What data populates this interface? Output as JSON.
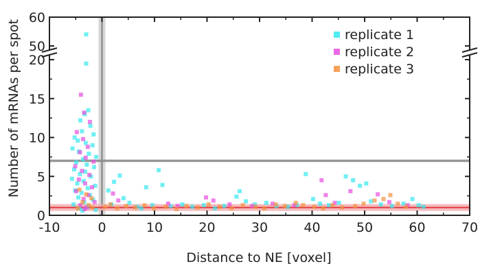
{
  "chart_data": {
    "type": "scatter",
    "xlabel": "Distance to NE [voxel]",
    "ylabel": "Number of mRNAs per spot",
    "xlim": [
      -10,
      70
    ],
    "x_ticks": [
      -10,
      0,
      10,
      20,
      30,
      40,
      50,
      60,
      70
    ],
    "ylim_lower": [
      0,
      20
    ],
    "y_ticks_lower": [
      0,
      5,
      10,
      15,
      20
    ],
    "ylim_upper": [
      50,
      60
    ],
    "y_ticks_upper": [
      50,
      60
    ],
    "axis_break": "between 20 and 50 on y axis",
    "grid": false,
    "legend_position": "top-right",
    "reference_lines": [
      {
        "orientation": "vertical",
        "x": 0,
        "color": "#8c8c8c"
      },
      {
        "orientation": "horizontal",
        "y": 7,
        "color": "#8c8c8c"
      },
      {
        "orientation": "horizontal",
        "y": 1,
        "color": "#e0393f"
      }
    ],
    "series": [
      {
        "name": "replicate 1",
        "color": "#33e8f0",
        "points": [
          [
            -3,
            54
          ],
          [
            -3,
            19.5
          ],
          [
            -2.6,
            13.5
          ],
          [
            -3.3,
            13
          ],
          [
            -4.1,
            12.2
          ],
          [
            -2.2,
            11.5
          ],
          [
            -3.8,
            10.8
          ],
          [
            -1.6,
            10.4
          ],
          [
            -5.2,
            10
          ],
          [
            -4.6,
            9.6
          ],
          [
            -3.1,
            9.3
          ],
          [
            -1.8,
            9
          ],
          [
            -5.6,
            8.6
          ],
          [
            -4.4,
            8.2
          ],
          [
            -2.5,
            7.9
          ],
          [
            -1.1,
            7.5
          ],
          [
            -3.6,
            7.2
          ],
          [
            -4.9,
            6.8
          ],
          [
            -2.9,
            6.5
          ],
          [
            -1.5,
            6.2
          ],
          [
            -5.3,
            5.9
          ],
          [
            -3.2,
            5.6
          ],
          [
            -4.2,
            5.3
          ],
          [
            -2.1,
            5
          ],
          [
            -5.7,
            4.7
          ],
          [
            -3.5,
            4.4
          ],
          [
            -4.7,
            4.1
          ],
          [
            -1.3,
            3.8
          ],
          [
            -2.7,
            3.5
          ],
          [
            -5.1,
            3.2
          ],
          [
            -3.9,
            2.9
          ],
          [
            -2.3,
            2.6
          ],
          [
            -4.5,
            2.3
          ],
          [
            -1.7,
            2
          ],
          [
            -3.4,
            1.7
          ],
          [
            -5.4,
            1.4
          ],
          [
            -2.8,
            1.1
          ],
          [
            -4.3,
            0.9
          ],
          [
            -1.2,
            0.7
          ],
          [
            -3.7,
            0.6
          ],
          [
            1.2,
            3.2
          ],
          [
            2.3,
            4.3
          ],
          [
            3.4,
            5.1
          ],
          [
            4.1,
            2.2
          ],
          [
            1.8,
            1.4
          ],
          [
            5.2,
            1.6
          ],
          [
            10.8,
            5.8
          ],
          [
            11.5,
            3.9
          ],
          [
            8.4,
            3.6
          ],
          [
            9.6,
            1.3
          ],
          [
            13.1,
            1.2
          ],
          [
            15.3,
            1.4
          ],
          [
            6.7,
            1.1
          ],
          [
            7.5,
            0.9
          ],
          [
            17.2,
            1.1
          ],
          [
            19.4,
            1.3
          ],
          [
            21.5,
            0.9
          ],
          [
            23.3,
            1.2
          ],
          [
            25.6,
            2.4
          ],
          [
            26.2,
            3.1
          ],
          [
            27.4,
            1.8
          ],
          [
            29.1,
            1.4
          ],
          [
            31.3,
            1.6
          ],
          [
            33.2,
            1.2
          ],
          [
            35.4,
            1.1
          ],
          [
            37.1,
            1.3
          ],
          [
            38.8,
            5.3
          ],
          [
            40.2,
            2.1
          ],
          [
            41.5,
            1.5
          ],
          [
            43.2,
            1.3
          ],
          [
            45.1,
            1.6
          ],
          [
            46.4,
            5
          ],
          [
            47.8,
            4.5
          ],
          [
            49.1,
            3.8
          ],
          [
            50.3,
            4.1
          ],
          [
            51.2,
            1.8
          ],
          [
            53.1,
            1.4
          ],
          [
            55.2,
            1.2
          ],
          [
            57.4,
            1.5
          ],
          [
            59.1,
            2.1
          ],
          [
            60.3,
            1.3
          ],
          [
            61.2,
            1.1
          ]
        ]
      },
      {
        "name": "replicate 2",
        "color": "#e64fe0",
        "points": [
          [
            -4,
            15.5
          ],
          [
            -3.4,
            13.2
          ],
          [
            -2.3,
            12
          ],
          [
            -4.8,
            10.7
          ],
          [
            -3.6,
            9.8
          ],
          [
            -2.7,
            8.8
          ],
          [
            -4.2,
            8.1
          ],
          [
            -3.1,
            7.4
          ],
          [
            -1.6,
            6.9
          ],
          [
            -5.1,
            6.3
          ],
          [
            -3.8,
            5.7
          ],
          [
            -2.4,
            5.2
          ],
          [
            -4.4,
            4.6
          ],
          [
            -3.2,
            4.1
          ],
          [
            -1.9,
            3.6
          ],
          [
            -4.9,
            3.1
          ],
          [
            -2.6,
            2.6
          ],
          [
            -3.5,
            2.1
          ],
          [
            -1.4,
            1.7
          ],
          [
            -4.1,
            1.3
          ],
          [
            -2.9,
            1
          ],
          [
            -3.3,
            0.8
          ],
          [
            2.1,
            2.8
          ],
          [
            3.1,
            1.9
          ],
          [
            12.6,
            1.5
          ],
          [
            14.4,
            1.2
          ],
          [
            19.8,
            2.3
          ],
          [
            21.2,
            1.9
          ],
          [
            24.3,
            1.4
          ],
          [
            28.6,
            1.2
          ],
          [
            32.5,
            1.5
          ],
          [
            36.6,
            1.3
          ],
          [
            41.8,
            4.5
          ],
          [
            42.6,
            2.6
          ],
          [
            44.3,
            1.6
          ],
          [
            47.3,
            3.1
          ],
          [
            52.5,
            2.7
          ],
          [
            54.7,
            1.7
          ],
          [
            58.2,
            1.3
          ]
        ]
      },
      {
        "name": "replicate 3",
        "color": "#f4913e",
        "points": [
          [
            -4.3,
            3.3
          ],
          [
            -3,
            2.7
          ],
          [
            -2,
            2.2
          ],
          [
            -3.7,
            1.7
          ],
          [
            -2.5,
            1.3
          ],
          [
            -1.8,
            1
          ],
          [
            -4.6,
            0.9
          ],
          [
            0.6,
            1.1
          ],
          [
            1.6,
            1.4
          ],
          [
            2.9,
            0.9
          ],
          [
            4.6,
            1.2
          ],
          [
            6.3,
            1
          ],
          [
            8.1,
            1.3
          ],
          [
            9.9,
            0.9
          ],
          [
            12.1,
            1.1
          ],
          [
            14.2,
            0.8
          ],
          [
            16.1,
            1.2
          ],
          [
            18.2,
            1
          ],
          [
            20.3,
            1.4
          ],
          [
            22.4,
            1.1
          ],
          [
            24.7,
            0.9
          ],
          [
            26.8,
            1.3
          ],
          [
            29.2,
            1.1
          ],
          [
            30.9,
            0.9
          ],
          [
            33.1,
            1.4
          ],
          [
            34.8,
            1.2
          ],
          [
            36.9,
            1.6
          ],
          [
            38.3,
            1.3
          ],
          [
            40.4,
            1.1
          ],
          [
            42.1,
            0.9
          ],
          [
            43.9,
            1.3
          ],
          [
            45.7,
            1
          ],
          [
            48.2,
            1.2
          ],
          [
            49.8,
            1.5
          ],
          [
            51.9,
            1.9
          ],
          [
            53.6,
            2.1
          ],
          [
            54.9,
            2.6
          ],
          [
            56.3,
            1.5
          ],
          [
            57.9,
            1.1
          ]
        ]
      }
    ]
  }
}
